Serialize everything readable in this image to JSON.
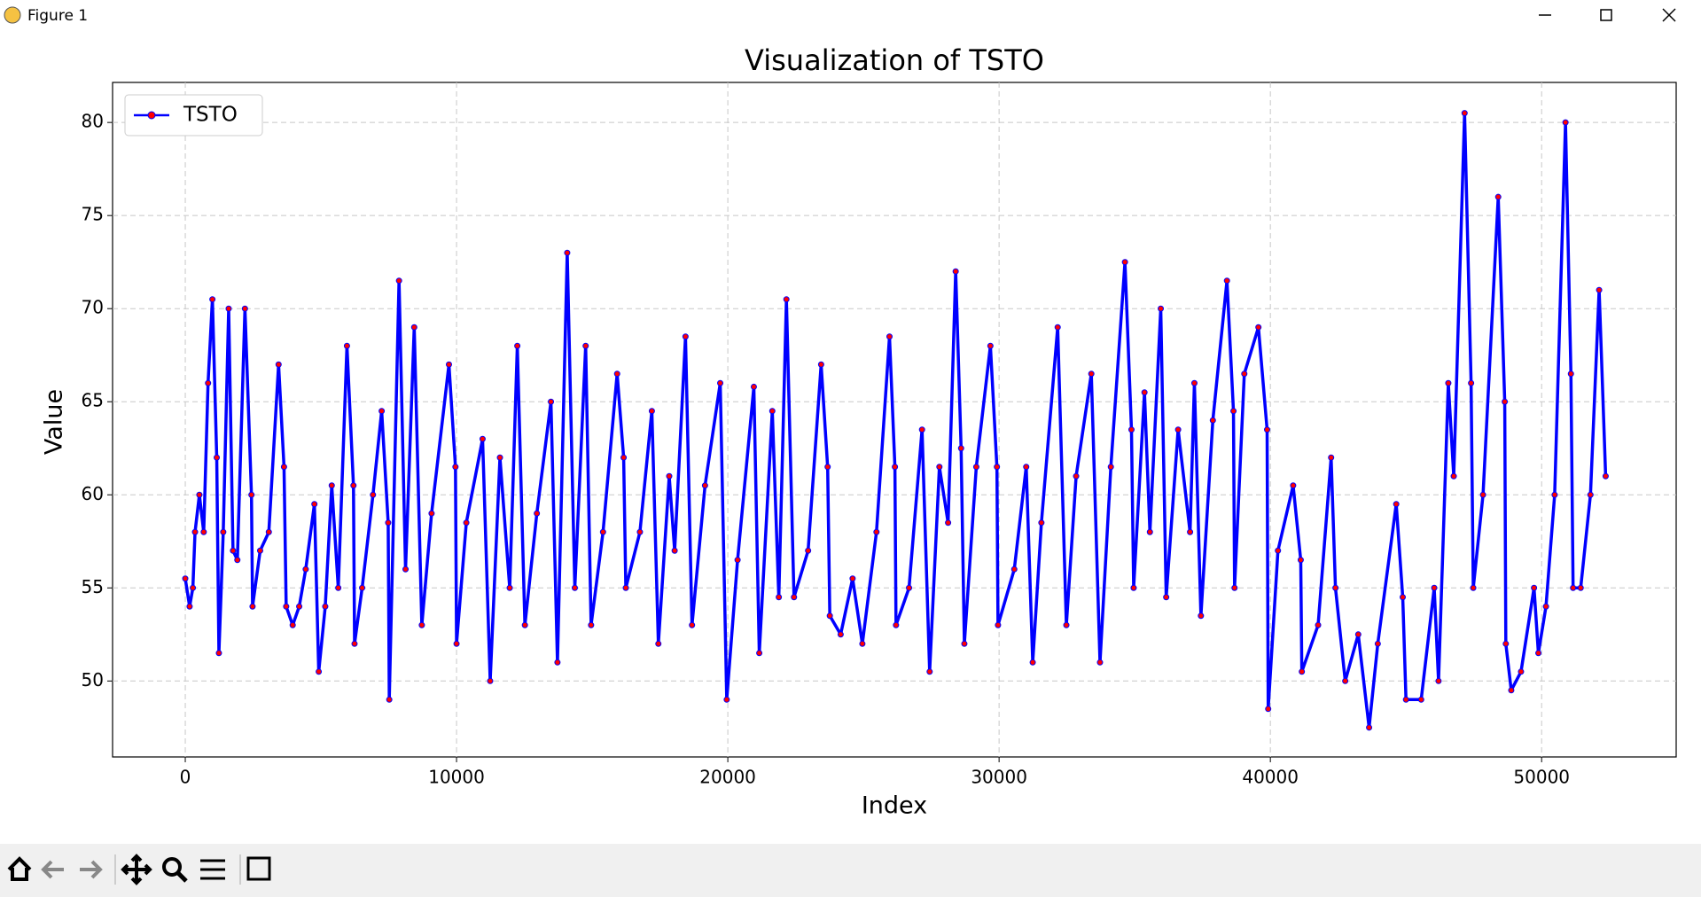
{
  "window": {
    "title": "Figure 1"
  },
  "chart_data": {
    "type": "line",
    "title": "Visualization of TSTO",
    "x_label": "Index",
    "y_label": "Value",
    "x": [
      0,
      160,
      280,
      360,
      520,
      680,
      840,
      1000,
      1160,
      1240,
      1400,
      1600,
      1760,
      1920,
      2200,
      2440,
      2480,
      2760,
      3080,
      3440,
      3640,
      3720,
      3960,
      4200,
      4440,
      4760,
      4920,
      5160,
      5400,
      5640,
      5960,
      6200,
      6240,
      6520,
      6920,
      7240,
      7480,
      7520,
      7880,
      8120,
      8440,
      8720,
      9080,
      9720,
      9960,
      10000,
      10360,
      10960,
      11240,
      11600,
      11960,
      12240,
      12520,
      12960,
      13480,
      13720,
      14080,
      14360,
      14760,
      14960,
      15400,
      15920,
      16160,
      16240,
      16760,
      17200,
      17440,
      17840,
      18040,
      18440,
      18680,
      19160,
      19720,
      19960,
      20360,
      20960,
      21160,
      21640,
      21880,
      22160,
      22440,
      22960,
      23440,
      23680,
      23760,
      24160,
      24600,
      24960,
      25480,
      25960,
      26160,
      26200,
      26680,
      27160,
      27440,
      27800,
      28120,
      28400,
      28600,
      28720,
      29160,
      29680,
      29920,
      29960,
      30560,
      31000,
      31240,
      31560,
      32160,
      32480,
      32840,
      33400,
      33720,
      34120,
      34640,
      34880,
      34960,
      35360,
      35560,
      35960,
      36160,
      36600,
      37040,
      37200,
      37440,
      37880,
      38400,
      38640,
      38680,
      39040,
      39560,
      39880,
      39920,
      40280,
      40840,
      41120,
      41160,
      41760,
      42240,
      42400,
      42760,
      43240,
      43640,
      43960,
      44640,
      44880,
      45000,
      45560,
      46040,
      46200,
      46560,
      46760,
      47160,
      47400,
      47480,
      47840,
      48400,
      48640,
      48680,
      48880,
      49240,
      49720,
      49880,
      50160,
      50480,
      50880,
      51080,
      51160,
      51440,
      51800,
      52120,
      52360
    ],
    "series": [
      {
        "name": "TSTO",
        "color": "#0000ff",
        "marker_color": "#ff0000",
        "values": [
          55.5,
          54,
          55,
          58,
          60,
          58,
          66,
          70.5,
          62,
          51.5,
          58,
          70,
          57,
          56.5,
          70,
          60,
          54,
          57,
          58,
          67,
          61.5,
          54,
          53,
          54,
          56,
          59.5,
          50.5,
          54,
          60.5,
          55,
          68,
          60.5,
          52,
          55,
          60,
          64.5,
          58.5,
          49,
          71.5,
          56,
          69,
          53,
          59,
          67,
          61.5,
          52,
          58.5,
          63,
          50,
          62,
          55,
          68,
          53,
          59,
          65,
          51,
          73,
          55,
          68,
          53,
          58,
          66.5,
          62,
          55,
          58,
          64.5,
          52,
          61,
          57,
          68.5,
          53,
          60.5,
          66,
          49,
          56.5,
          65.8,
          51.5,
          64.5,
          54.5,
          70.5,
          54.5,
          57,
          67,
          61.5,
          53.5,
          52.5,
          55.5,
          52,
          58,
          68.5,
          61.5,
          53,
          55,
          63.5,
          50.5,
          61.5,
          58.5,
          72,
          62.5,
          52,
          61.5,
          68,
          61.5,
          53,
          56,
          61.5,
          51,
          58.5,
          69,
          53,
          61,
          66.5,
          51,
          61.5,
          72.5,
          63.5,
          55,
          65.5,
          58,
          70,
          54.5,
          63.5,
          58,
          66,
          53.5,
          64,
          71.5,
          64.5,
          55,
          66.5,
          69,
          63.5,
          48.5,
          57,
          60.5,
          56.5,
          50.5,
          53,
          62,
          55,
          50,
          52.5,
          47.5,
          52,
          59.5,
          54.5,
          49,
          49,
          55,
          50,
          66,
          61,
          80.5,
          66,
          55,
          60,
          76,
          65,
          52,
          49.5,
          50.5,
          55,
          51.5,
          54,
          60,
          80,
          66.5,
          55,
          55,
          60,
          71,
          61
        ]
      }
    ],
    "xlim": [
      -2680,
      54960
    ],
    "ylim": [
      45.92,
      82.15
    ],
    "xticks": [
      0,
      10000,
      20000,
      30000,
      40000,
      50000
    ],
    "yticks": [
      50,
      55,
      60,
      65,
      70,
      75,
      80
    ],
    "grid": true,
    "legend": "upper left"
  }
}
